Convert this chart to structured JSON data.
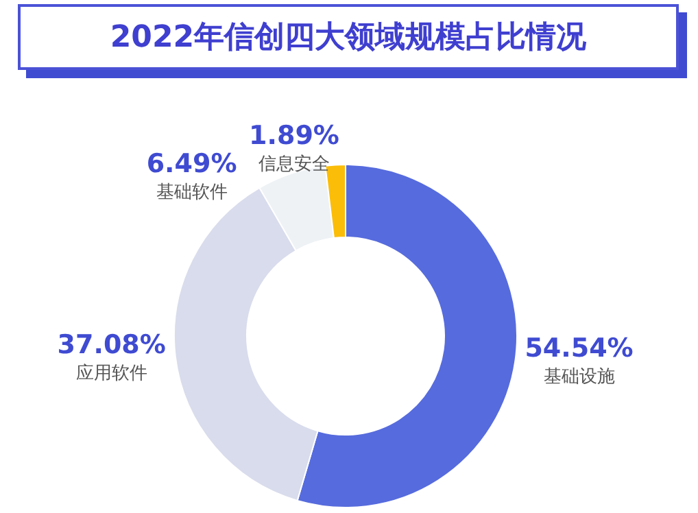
{
  "chart_data": {
    "type": "donut",
    "title": "2022年信创四大领域规模占比情况",
    "categories": [
      "基础设施",
      "应用软件",
      "基础软件",
      "信息安全"
    ],
    "values": [
      54.54,
      37.08,
      6.49,
      1.89
    ],
    "value_labels": [
      "54.54%",
      "37.08%",
      "6.49%",
      "1.89%"
    ],
    "colors": [
      "#566bdd",
      "#d8dcec",
      "#eef2f5",
      "#fbbd08"
    ],
    "legend": false
  }
}
